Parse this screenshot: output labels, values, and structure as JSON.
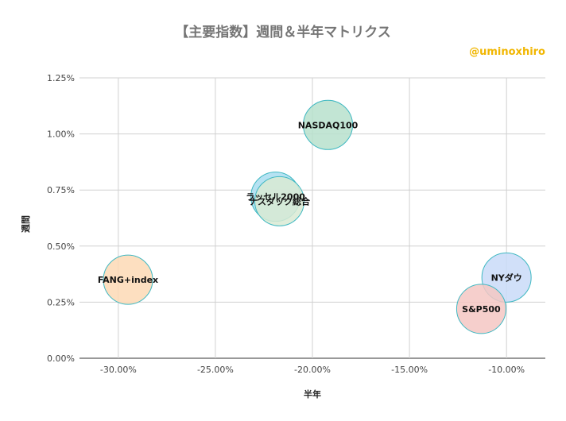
{
  "title": "【主要指数】週間＆半年マトリクス",
  "credit": "@uminoxhiro",
  "chart_data": {
    "type": "scatter",
    "xlabel": "半年",
    "ylabel": "週間",
    "xlim": [
      -0.32,
      -0.08
    ],
    "ylim": [
      0,
      0.0125
    ],
    "xticks": [
      -0.3,
      -0.25,
      -0.2,
      -0.15,
      -0.1
    ],
    "xtick_labels": [
      "-30.00%",
      "-25.00%",
      "-20.00%",
      "-15.00%",
      "-10.00%"
    ],
    "yticks": [
      0,
      0.0025,
      0.005,
      0.0075,
      0.01,
      0.0125
    ],
    "ytick_labels": [
      "0.00%",
      "0.25%",
      "0.50%",
      "0.75%",
      "1.00%",
      "1.25%"
    ],
    "grid": true,
    "points": [
      {
        "name": "NASDAQ100",
        "x": -0.192,
        "y": 0.0104,
        "color": "#b7e1cd"
      },
      {
        "name": "ラッセル2000",
        "x": -0.219,
        "y": 0.0072,
        "color": "#a9ddf0"
      },
      {
        "name": "ナスダック総合",
        "x": -0.217,
        "y": 0.007,
        "color": "#d9ead3"
      },
      {
        "name": "FANG+index",
        "x": -0.295,
        "y": 0.0035,
        "color": "#fdd9b5"
      },
      {
        "name": "NYダウ",
        "x": -0.1,
        "y": 0.0036,
        "color": "#c9daf8"
      },
      {
        "name": "S&P500",
        "x": -0.113,
        "y": 0.0022,
        "color": "#f4c7c3"
      }
    ]
  }
}
